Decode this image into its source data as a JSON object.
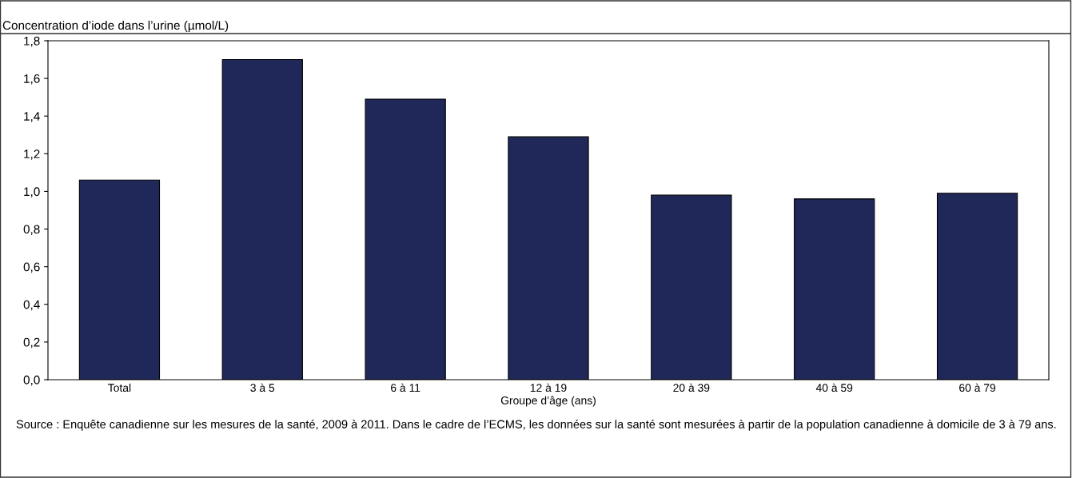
{
  "chart_data": {
    "type": "bar",
    "ylabel": "Concentration d’iode dans l’urine (µmol/L)",
    "xlabel": "Groupe d’âge (ans)",
    "categories": [
      "Total",
      "3 à 5",
      "6 à 11",
      "12 à 19",
      "20 à 39",
      "40 à 59",
      "60 à 79"
    ],
    "values": [
      1.06,
      1.7,
      1.49,
      1.29,
      0.98,
      0.96,
      0.99
    ],
    "color": "#1f2858",
    "ylim": [
      0,
      1.8
    ],
    "yticks": [
      {
        "value": 0,
        "label": "0,0"
      },
      {
        "value": 0.2,
        "label": "0,2"
      },
      {
        "value": 0.4,
        "label": "0,4"
      },
      {
        "value": 0.6,
        "label": "0,6"
      },
      {
        "value": 0.8,
        "label": "0,8"
      },
      {
        "value": 1.0,
        "label": "1,0"
      },
      {
        "value": 1.2,
        "label": "1,2"
      },
      {
        "value": 1.4,
        "label": "1,4"
      },
      {
        "value": 1.6,
        "label": "1,6"
      },
      {
        "value": 1.8,
        "label": "1,8"
      }
    ],
    "grid": false,
    "legend": false,
    "annotations": [
      "Source : Enquête canadienne sur les mesures de la santé, 2009 à 2011. Dans le cadre de l’ECMS, les données sur la santé sont mesurées à partir de la population canadienne à domicile de 3 à 79 ans."
    ]
  }
}
